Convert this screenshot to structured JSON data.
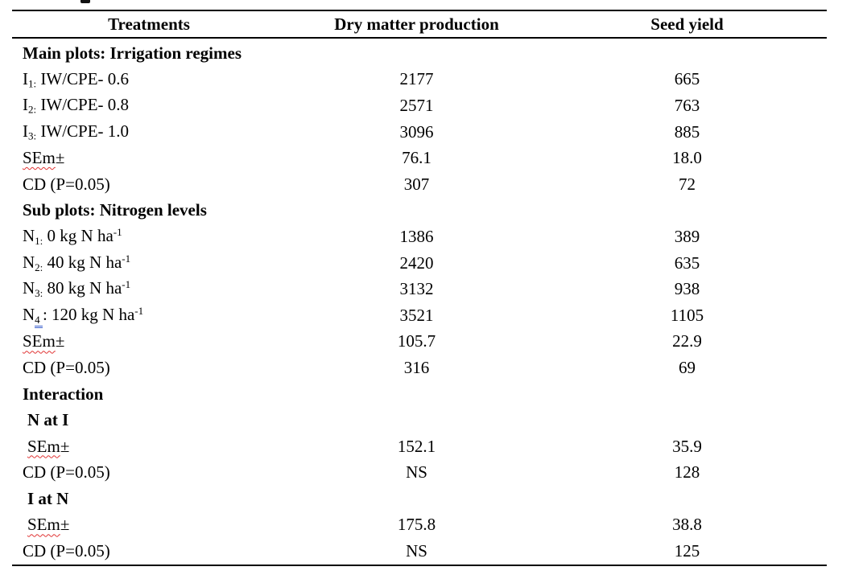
{
  "page": {
    "background": "#ffffff",
    "text_color": "#000000"
  },
  "decorations": {
    "cropped_caption_fragment": "partial glyph of cropped caption text above table",
    "spellcheck_underline_color": "#e03333",
    "grammar_underline_color": "#3a5fcd",
    "rule_color": "#000000"
  },
  "table": {
    "columns": [
      "Treatments",
      "Dry matter production",
      "Seed yield"
    ],
    "rows": [
      {
        "bold": true,
        "label": [
          {
            "t": "Main plots: Irrigation regimes"
          }
        ],
        "dmp": "",
        "seed": ""
      },
      {
        "label": [
          {
            "t": "I"
          },
          {
            "t": "1:",
            "s": "sub"
          },
          {
            "t": " IW/CPE- 0.6"
          }
        ],
        "dmp": "2177",
        "seed": "665"
      },
      {
        "label": [
          {
            "t": "I"
          },
          {
            "t": "2:",
            "s": "sub"
          },
          {
            "t": " IW/CPE- 0.8"
          }
        ],
        "dmp": "2571",
        "seed": "763"
      },
      {
        "label": [
          {
            "t": "I"
          },
          {
            "t": "3:",
            "s": "sub"
          },
          {
            "t": " IW/CPE- 1.0"
          }
        ],
        "dmp": "3096",
        "seed": "885"
      },
      {
        "label": [
          {
            "t": "SEm",
            "u": "spell"
          },
          {
            "t": "±"
          }
        ],
        "dmp": "76.1",
        "seed": "18.0"
      },
      {
        "label": [
          {
            "t": "CD (P=0.05)"
          }
        ],
        "dmp": "307",
        "seed": "72"
      },
      {
        "bold": true,
        "label": [
          {
            "t": "Sub plots: Nitrogen levels"
          }
        ],
        "dmp": "",
        "seed": ""
      },
      {
        "label": [
          {
            "t": "N"
          },
          {
            "t": "1:",
            "s": "sub"
          },
          {
            "t": " 0 kg N ha"
          },
          {
            "t": "-1",
            "s": "sup"
          }
        ],
        "dmp": "1386",
        "seed": "389"
      },
      {
        "label": [
          {
            "t": "N"
          },
          {
            "t": "2:",
            "s": "sub"
          },
          {
            "t": " 40 kg N ha"
          },
          {
            "t": "-1",
            "s": "sup"
          }
        ],
        "dmp": "2420",
        "seed": "635"
      },
      {
        "label": [
          {
            "t": "N"
          },
          {
            "t": "3:",
            "s": "sub"
          },
          {
            "t": " 80 kg N ha"
          },
          {
            "t": "-1",
            "s": "sup"
          }
        ],
        "dmp": "3132",
        "seed": "938"
      },
      {
        "label": [
          {
            "t": "N"
          },
          {
            "t": "4 ",
            "s": "sub",
            "u": "grammar"
          },
          {
            "t": ": 120 kg N ha"
          },
          {
            "t": "-1",
            "s": "sup"
          }
        ],
        "dmp": "3521",
        "seed": "1105"
      },
      {
        "label": [
          {
            "t": "SEm",
            "u": "spell"
          },
          {
            "t": "±"
          }
        ],
        "dmp": "105.7",
        "seed": "22.9"
      },
      {
        "label": [
          {
            "t": "CD (P=0.05)"
          }
        ],
        "dmp": "316",
        "seed": "69"
      },
      {
        "bold": true,
        "label": [
          {
            "t": "Interaction"
          }
        ],
        "dmp": "",
        "seed": ""
      },
      {
        "bold": true,
        "ind": true,
        "label": [
          {
            "t": "N at I"
          }
        ],
        "dmp": "",
        "seed": ""
      },
      {
        "ind": true,
        "label": [
          {
            "t": "SEm",
            "u": "spell"
          },
          {
            "t": "±"
          }
        ],
        "dmp": "152.1",
        "seed": "35.9"
      },
      {
        "label": [
          {
            "t": "CD (P=0.05)"
          }
        ],
        "dmp": "NS",
        "seed": "128"
      },
      {
        "bold": true,
        "ind": true,
        "label": [
          {
            "t": "I at N"
          }
        ],
        "dmp": "",
        "seed": ""
      },
      {
        "ind": true,
        "label": [
          {
            "t": "SEm",
            "u": "spell"
          },
          {
            "t": "±"
          }
        ],
        "dmp": "175.8",
        "seed": "38.8"
      },
      {
        "label": [
          {
            "t": "CD (P=0.05)"
          }
        ],
        "dmp": "NS",
        "seed": "125"
      }
    ]
  }
}
